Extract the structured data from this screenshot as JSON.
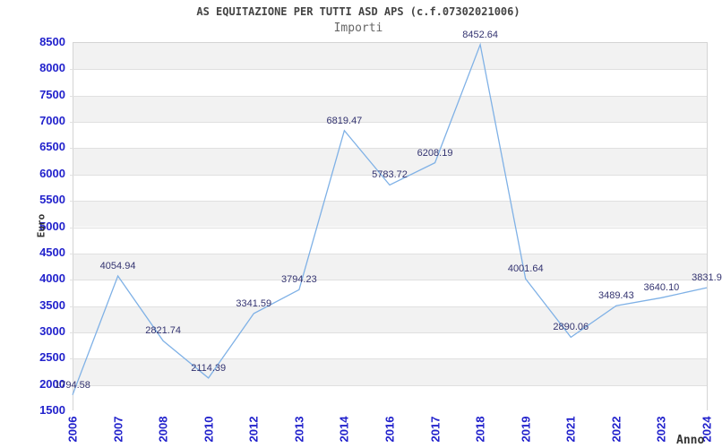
{
  "chart_data": {
    "type": "line",
    "title": "AS EQUITAZIONE PER TUTTI ASD APS (c.f.07302021006)",
    "subtitle": "Importi",
    "xlabel": "Anno",
    "ylabel": "Euro",
    "categories": [
      "2006",
      "2007",
      "2008",
      "2010",
      "2012",
      "2013",
      "2014",
      "2016",
      "2017",
      "2018",
      "2019",
      "2021",
      "2022",
      "2023",
      "2024"
    ],
    "values": [
      1794.58,
      4054.94,
      2821.74,
      2114.39,
      3341.59,
      3794.23,
      6819.47,
      5783.72,
      6208.19,
      8452.64,
      4001.64,
      2890.06,
      3489.43,
      3640.1,
      3831.9
    ],
    "point_labels": [
      "1794.58",
      "4054.94",
      "2821.74",
      "2114.39",
      "3341.59",
      "3794.23",
      "6819.47",
      "5783.72",
      "6208.19",
      "8452.64",
      "4001.64",
      "2890.06",
      "3489.43",
      "3640.10",
      "3831.9"
    ],
    "ylim": [
      1500,
      8500
    ],
    "ytick_step": 500,
    "grid": "horizontal-bands-alternating",
    "legend": "none",
    "colors": {
      "line": "#7fb1e6",
      "tick_label": "#2222cc",
      "point_label": "#333370",
      "band": "#f2f2f2",
      "gridline": "#e0e0e0",
      "plot_border": "#d4d4d4",
      "title": "#444444",
      "subtitle": "#666666",
      "axis_title": "#333333"
    }
  }
}
